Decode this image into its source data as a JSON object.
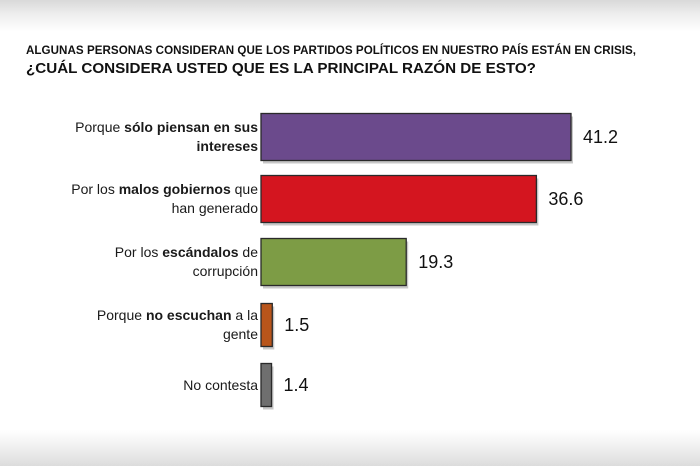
{
  "title": {
    "line1": "ALGUNAS PERSONAS CONSIDERAN QUE LOS PARTIDOS POLÍTICOS EN NUESTRO PAÍS ESTÁN EN CRISIS,",
    "line2": "¿CUÁL CONSIDERA USTED QUE ES LA PRINCIPAL RAZÓN DE ESTO?"
  },
  "chart_data": {
    "type": "bar",
    "orientation": "horizontal",
    "title": "ALGUNAS PERSONAS CONSIDERAN QUE LOS PARTIDOS POLÍTICOS EN NUESTRO PAÍS ESTÁN EN CRISIS, ¿CUÁL CONSIDERA USTED QUE ES LA PRINCIPAL RAZÓN DE ESTO?",
    "categories": [
      "Porque sólo piensan en sus intereses",
      "Por los malos gobiernos que han generado",
      "Por los escándalos de corrupción",
      "Porque no escuchan a la gente",
      "No contesta"
    ],
    "category_parts": [
      [
        {
          "t": "Porque ",
          "b": false
        },
        {
          "t": "sólo piensan en sus",
          "b": true
        },
        {
          "t": "\n",
          "b": false
        },
        {
          "t": "intereses",
          "b": true
        }
      ],
      [
        {
          "t": "Por los ",
          "b": false
        },
        {
          "t": "malos gobiernos",
          "b": true
        },
        {
          "t": " que",
          "b": false
        },
        {
          "t": "\n",
          "b": false
        },
        {
          "t": "han generado",
          "b": false
        }
      ],
      [
        {
          "t": "Por los ",
          "b": false
        },
        {
          "t": "escándalos",
          "b": true
        },
        {
          "t": " de",
          "b": false
        },
        {
          "t": "\n",
          "b": false
        },
        {
          "t": "corrupción",
          "b": false
        }
      ],
      [
        {
          "t": "Porque ",
          "b": false
        },
        {
          "t": "no escuchan",
          "b": true
        },
        {
          "t": " a la",
          "b": false
        },
        {
          "t": "\n",
          "b": false
        },
        {
          "t": "gente",
          "b": false
        }
      ],
      [
        {
          "t": "No contesta",
          "b": false
        }
      ]
    ],
    "values": [
      41.2,
      36.6,
      19.3,
      1.5,
      1.4
    ],
    "value_labels": [
      "41.2",
      "36.6",
      "19.3",
      "1.5",
      "1.4"
    ],
    "colors": [
      "#6b4a8c",
      "#d4151f",
      "#7d9c45",
      "#b8551b",
      "#6f6f6f"
    ],
    "xlim": [
      0,
      45
    ],
    "grid": false,
    "legend": "none"
  }
}
